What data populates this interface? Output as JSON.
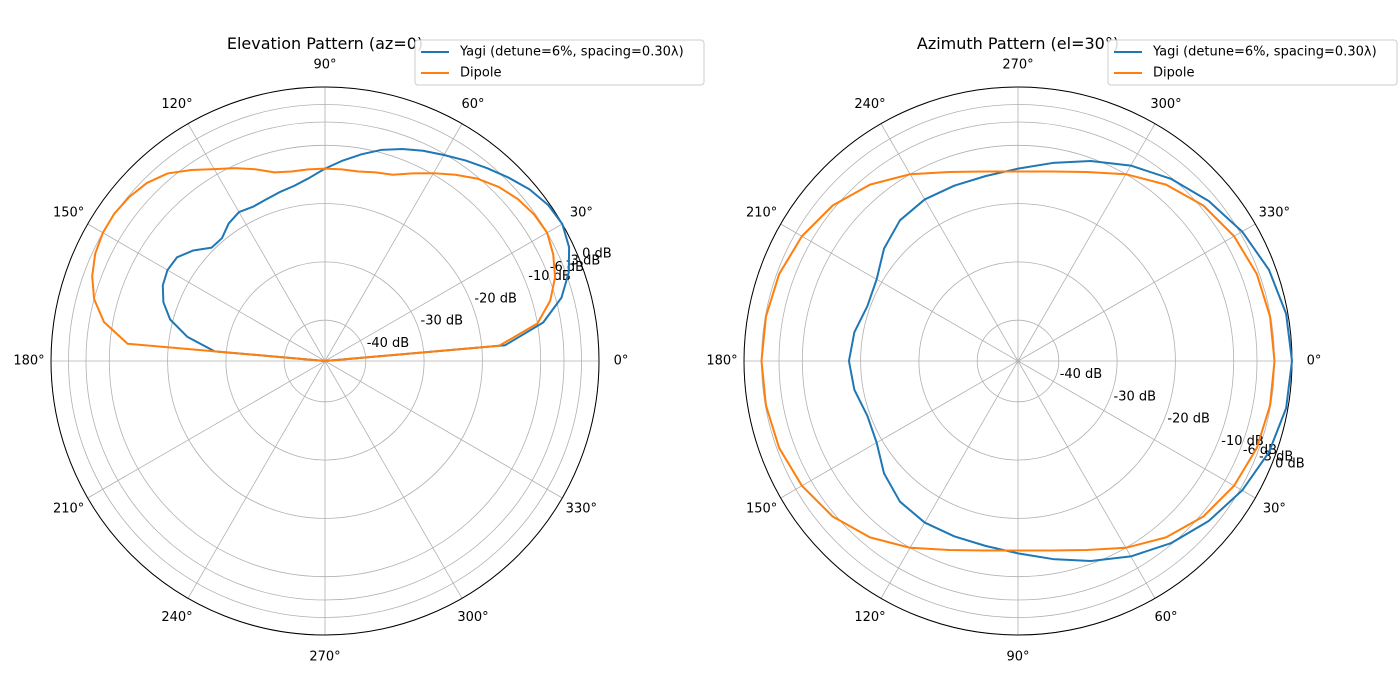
{
  "chart_data": [
    {
      "type": "polar-line",
      "title": "Elevation Pattern (az=0)",
      "theta_direction": "counterclockwise",
      "theta_zero": "east",
      "angle_ticks": [
        "0°",
        "30°",
        "60°",
        "90°",
        "120°",
        "150°",
        "180°",
        "210°",
        "240°",
        "270°",
        "300°",
        "330°"
      ],
      "radial_ticks": [
        "-40 dB",
        "-30 dB",
        "-20 dB",
        "-10 dB",
        "-6 dB",
        "-3 dB",
        "0 dB"
      ],
      "radial_tick_values": [
        -40,
        -30,
        -20,
        -10,
        -6,
        -3,
        0
      ],
      "rlim": [
        -47,
        0
      ],
      "grid": true,
      "legend_placement": "top-right",
      "series": [
        {
          "name": "Yagi (detune=6%, spacing=0.30λ)",
          "color": "#1f77b4",
          "theta": [
            0,
            5,
            10,
            15,
            20,
            25,
            30,
            35,
            40,
            45,
            50,
            55,
            60,
            65,
            70,
            75,
            80,
            85,
            90,
            95,
            100,
            105,
            110,
            115,
            120,
            125,
            130,
            135,
            140,
            145,
            150,
            155,
            160,
            165,
            170,
            175,
            180
          ],
          "values": [
            -47,
            -16,
            -9,
            -5,
            -2.5,
            -0.8,
            0,
            -0.3,
            -1.2,
            -2.5,
            -3.8,
            -5,
            -6.2,
            -7.2,
            -8.3,
            -9.5,
            -11,
            -12.5,
            -14,
            -15.5,
            -16.5,
            -17,
            -17.5,
            -17.8,
            -17.5,
            -18.2,
            -19.5,
            -19.5,
            -17.5,
            -16,
            -15.8,
            -16.3,
            -17.5,
            -19.5,
            -23,
            -28,
            -47
          ]
        },
        {
          "name": "Dipole",
          "color": "#ff7f0e",
          "theta": [
            0,
            5,
            10,
            15,
            20,
            25,
            30,
            35,
            40,
            45,
            50,
            55,
            60,
            65,
            70,
            75,
            80,
            85,
            90,
            95,
            100,
            105,
            110,
            115,
            120,
            125,
            130,
            135,
            140,
            145,
            150,
            155,
            160,
            165,
            170,
            175,
            180
          ],
          "values": [
            -47,
            -17,
            -10,
            -7,
            -5,
            -3.8,
            -3,
            -3.2,
            -3.8,
            -4.8,
            -6.2,
            -8,
            -9.8,
            -11.5,
            -13,
            -13.5,
            -14,
            -14,
            -14,
            -14,
            -14,
            -13.5,
            -12,
            -10.5,
            -9,
            -7,
            -5,
            -3.8,
            -3.2,
            -2.9,
            -3,
            -3.5,
            -4.5,
            -6,
            -8.5,
            -13,
            -47
          ]
        }
      ]
    },
    {
      "type": "polar-line",
      "title": "Azimuth Pattern (el=30°)",
      "theta_direction": "clockwise",
      "theta_zero": "east",
      "angle_ticks": [
        "0°",
        "30°",
        "60°",
        "90°",
        "120°",
        "150°",
        "180°",
        "210°",
        "240°",
        "270°",
        "300°",
        "330°"
      ],
      "radial_ticks": [
        "-40 dB",
        "-30 dB",
        "-20 dB",
        "-10 dB",
        "-6 dB",
        "-3 dB",
        "0 dB"
      ],
      "radial_tick_values": [
        -40,
        -30,
        -20,
        -10,
        -6,
        -3,
        0
      ],
      "rlim": [
        -47,
        0
      ],
      "grid": true,
      "legend_placement": "top-right",
      "series": [
        {
          "name": "Yagi (detune=6%, spacing=0.30λ)",
          "color": "#1f77b4",
          "theta": [
            0,
            10,
            20,
            30,
            40,
            50,
            60,
            70,
            80,
            90,
            100,
            110,
            120,
            130,
            140,
            150,
            160,
            170,
            180,
            190,
            200,
            210,
            220,
            230,
            240,
            250,
            260,
            270,
            280,
            290,
            300,
            310,
            320,
            330,
            340,
            350,
            360
          ],
          "values": [
            0,
            -0.3,
            -1.2,
            -2.6,
            -4.3,
            -6.2,
            -8.3,
            -10.5,
            -12.5,
            -14,
            -14.8,
            -15,
            -15,
            -15.5,
            -17,
            -19,
            -19.5,
            -18.5,
            -18,
            -18.5,
            -19.5,
            -19,
            -17,
            -15.5,
            -15,
            -15,
            -14.8,
            -14,
            -12.5,
            -10.5,
            -8.3,
            -6.2,
            -4.3,
            -2.6,
            -1.2,
            -0.3,
            0
          ]
        },
        {
          "name": "Dipole",
          "color": "#ff7f0e",
          "theta": [
            0,
            10,
            20,
            30,
            40,
            50,
            60,
            70,
            80,
            90,
            100,
            110,
            120,
            130,
            140,
            150,
            160,
            170,
            180,
            190,
            200,
            210,
            220,
            230,
            240,
            250,
            260,
            270,
            280,
            290,
            300,
            310,
            320,
            330,
            340,
            350,
            360
          ],
          "values": [
            -3,
            -3.1,
            -3.4,
            -4.2,
            -5.5,
            -7.5,
            -10,
            -12.5,
            -14,
            -14.5,
            -14,
            -12.5,
            -10,
            -7.5,
            -5.5,
            -4.2,
            -3.4,
            -3.1,
            -3,
            -3.1,
            -3.4,
            -4.2,
            -5.5,
            -7.5,
            -10,
            -12.5,
            -14,
            -14.5,
            -14,
            -12.5,
            -10,
            -7.5,
            -5.5,
            -4.2,
            -3.4,
            -3.1,
            -3
          ]
        }
      ]
    }
  ]
}
